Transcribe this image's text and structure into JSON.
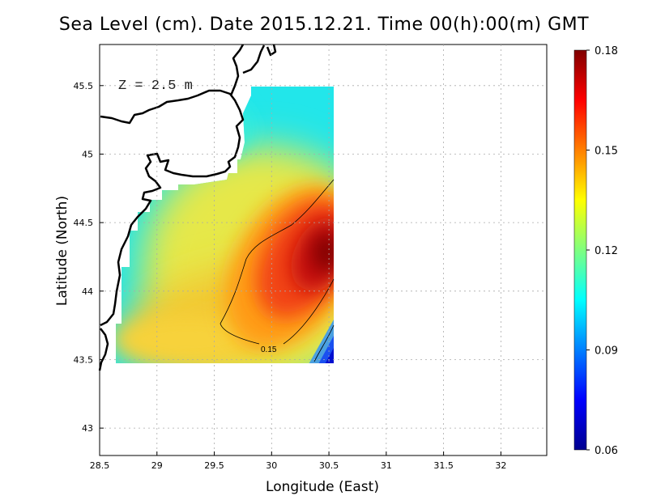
{
  "title": "Sea Level (cm). Date 2015.12.21. Time 00(h):00(m) GMT",
  "depth_label": "Z = 2.5 m",
  "xlabel": "Longitude (East)",
  "ylabel": "Latitude (North)",
  "chart_data": {
    "type": "heatmap",
    "title": "Sea Level (cm). Date 2015.12.21. Time 00(h):00(m) GMT",
    "xlabel": "Longitude (East)",
    "ylabel": "Latitude (North)",
    "xlim": [
      28.5,
      32.4
    ],
    "ylim": [
      42.8,
      45.8
    ],
    "x_ticks": [
      "28.5",
      "29",
      "29.5",
      "30",
      "30.5",
      "31",
      "31.5",
      "32"
    ],
    "y_ticks": [
      "43",
      "43.5",
      "44",
      "44.5",
      "45",
      "45.5"
    ],
    "grid": true,
    "field_extent": {
      "lon": [
        28.62,
        30.52
      ],
      "lat": [
        43.48,
        45.5
      ]
    },
    "colorbar": {
      "min": 0.06,
      "max": 0.18,
      "ticks": [
        "0.18",
        "0.15",
        "0.12",
        "0.09",
        "0.06"
      ],
      "colormap": "jet"
    },
    "max_center": {
      "lon": 30.4,
      "lat": 44.22,
      "value": 0.18
    },
    "min_corner": {
      "lon": 30.5,
      "lat": 43.5,
      "value": 0.06
    },
    "contours": [
      {
        "value": 0.15,
        "label": "0.15"
      }
    ]
  },
  "colors": {
    "land_outline": "#000000",
    "grid": "#aaaaaa",
    "mask": "#ffffff"
  }
}
